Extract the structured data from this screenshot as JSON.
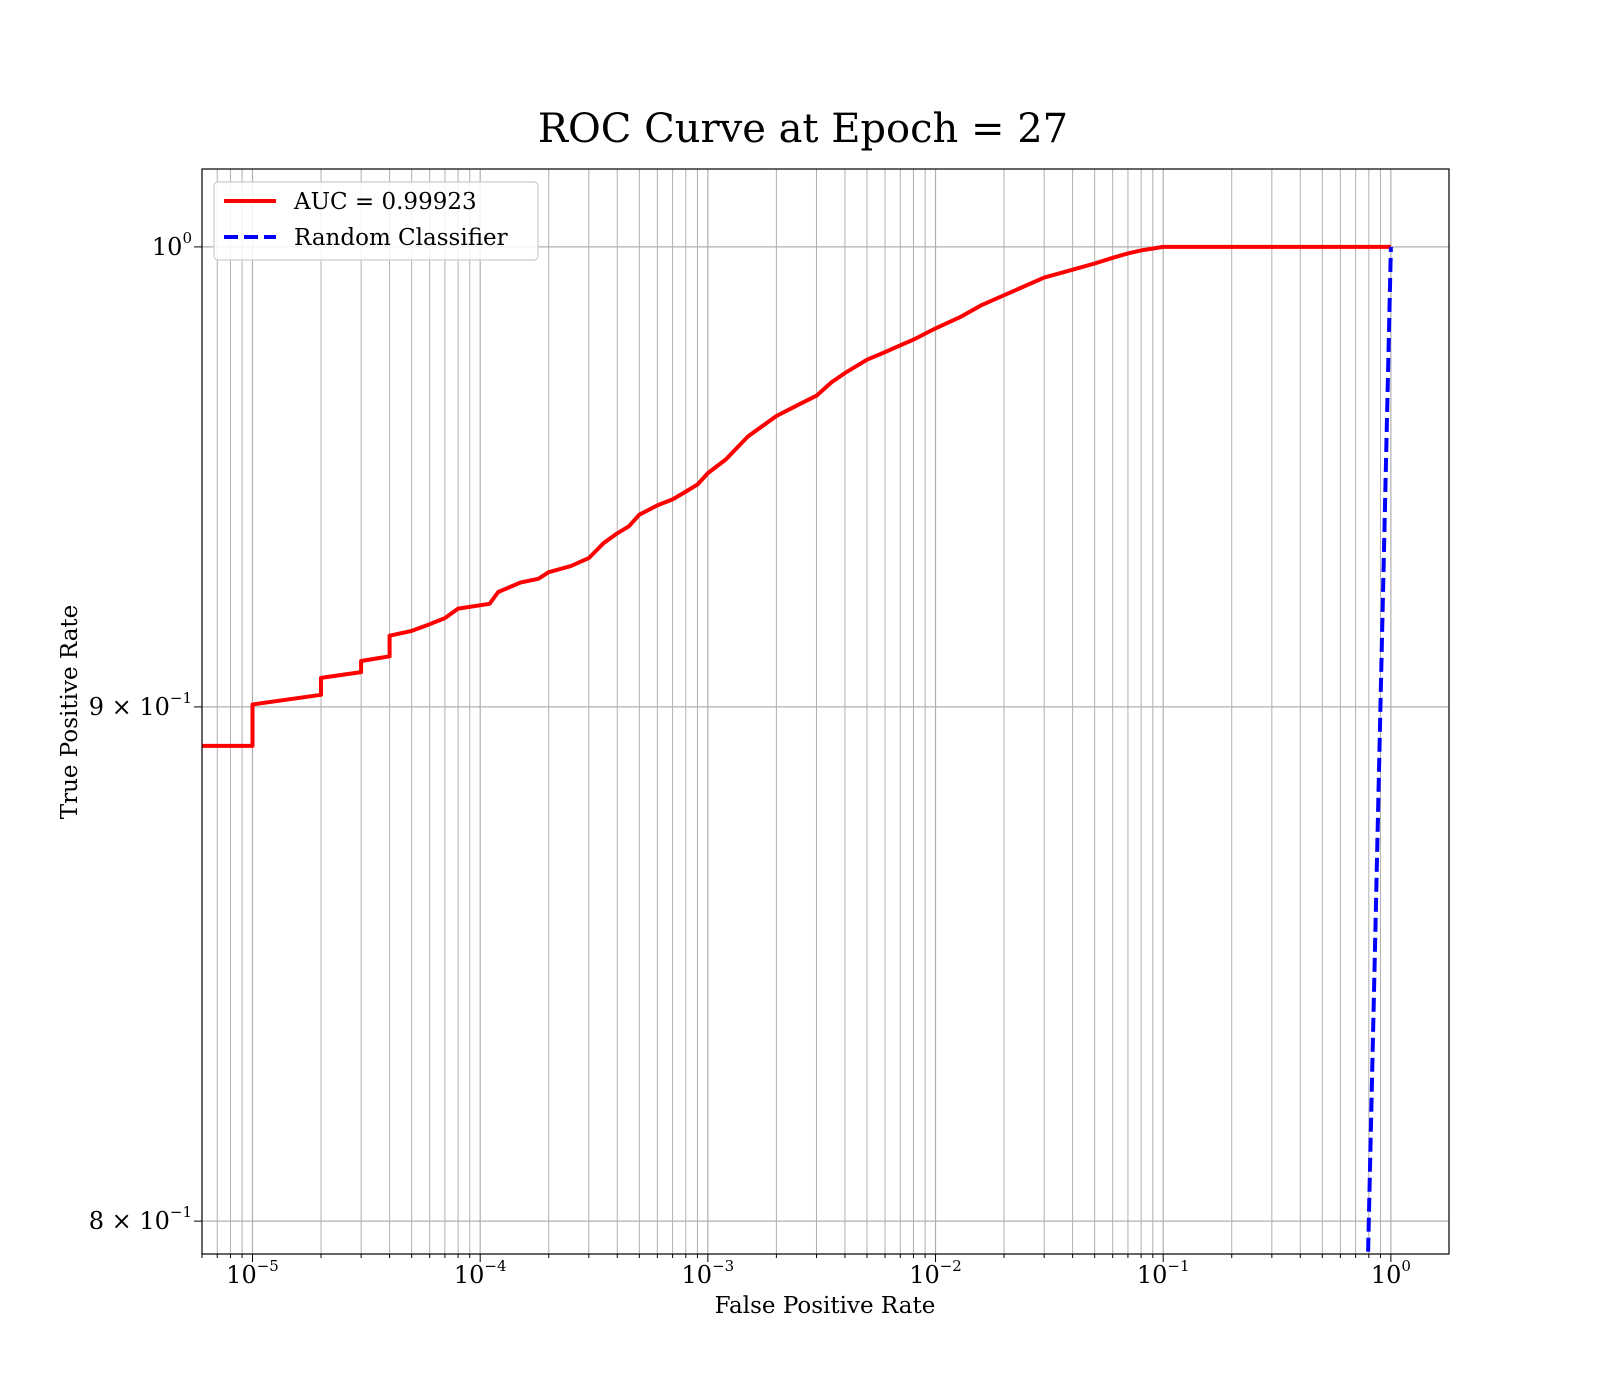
{
  "chart_data": {
    "type": "line",
    "title": "ROC Curve at Epoch = 27",
    "xlabel": "False Positive Rate",
    "ylabel": "True Positive Rate",
    "xscale": "log",
    "yscale": "log",
    "xlim": [
      6e-06,
      1.8
    ],
    "ylim": [
      0.794,
      1.018
    ],
    "grid": true,
    "grid_minor": true,
    "legend_position": "top-left",
    "x_ticks": [
      {
        "value": 1e-05,
        "base": "10",
        "exp": "−5"
      },
      {
        "value": 0.0001,
        "base": "10",
        "exp": "−4"
      },
      {
        "value": 0.001,
        "base": "10",
        "exp": "−3"
      },
      {
        "value": 0.01,
        "base": "10",
        "exp": "−2"
      },
      {
        "value": 0.1,
        "base": "10",
        "exp": "−1"
      },
      {
        "value": 1,
        "base": "10",
        "exp": "0"
      }
    ],
    "y_ticks": [
      {
        "value": 1.0,
        "base": "10",
        "exp": "0"
      },
      {
        "value": 0.9,
        "base": "9 × 10",
        "exp": "−1"
      },
      {
        "value": 0.8,
        "base": "8 × 10",
        "exp": "−1"
      }
    ],
    "series": [
      {
        "name": "AUC = 0.99923",
        "color": "#ff0000",
        "style": "solid",
        "x": [
          6e-06,
          1e-05,
          1e-05,
          2e-05,
          2e-05,
          3e-05,
          3e-05,
          4e-05,
          4e-05,
          5e-05,
          6e-05,
          7e-05,
          8e-05,
          0.00011,
          0.00012,
          0.00015,
          0.00018,
          0.0002,
          0.00025,
          0.0003,
          0.00035,
          0.0004,
          0.00045,
          0.0005,
          0.0006,
          0.0007,
          0.0008,
          0.0009,
          0.001,
          0.0012,
          0.0015,
          0.002,
          0.0025,
          0.003,
          0.0035,
          0.004,
          0.005,
          0.006,
          0.008,
          0.01,
          0.013,
          0.016,
          0.02,
          0.025,
          0.03,
          0.04,
          0.05,
          0.06,
          0.07,
          0.08,
          0.1,
          0.2,
          0.4,
          0.7,
          1.0
        ],
        "y": [
          0.892,
          0.892,
          0.9005,
          0.9025,
          0.906,
          0.9072,
          0.9095,
          0.9105,
          0.9148,
          0.9158,
          0.9172,
          0.9185,
          0.9205,
          0.9215,
          0.924,
          0.926,
          0.9268,
          0.9282,
          0.9295,
          0.9312,
          0.9345,
          0.9365,
          0.938,
          0.9405,
          0.9425,
          0.9438,
          0.9455,
          0.947,
          0.9495,
          0.9525,
          0.9575,
          0.962,
          0.9645,
          0.9665,
          0.9695,
          0.9715,
          0.9745,
          0.9762,
          0.979,
          0.9815,
          0.9842,
          0.9868,
          0.989,
          0.9912,
          0.993,
          0.9948,
          0.9962,
          0.9975,
          0.9985,
          0.9992,
          1.0,
          1.0,
          1.0,
          1.0,
          1.0
        ]
      },
      {
        "name": "Random Classifier",
        "color": "#0000ff",
        "style": "dashed",
        "x": [
          0.78,
          0.85,
          0.92,
          1.0
        ],
        "y": [
          0.78,
          0.85,
          0.92,
          1.0
        ]
      }
    ]
  }
}
